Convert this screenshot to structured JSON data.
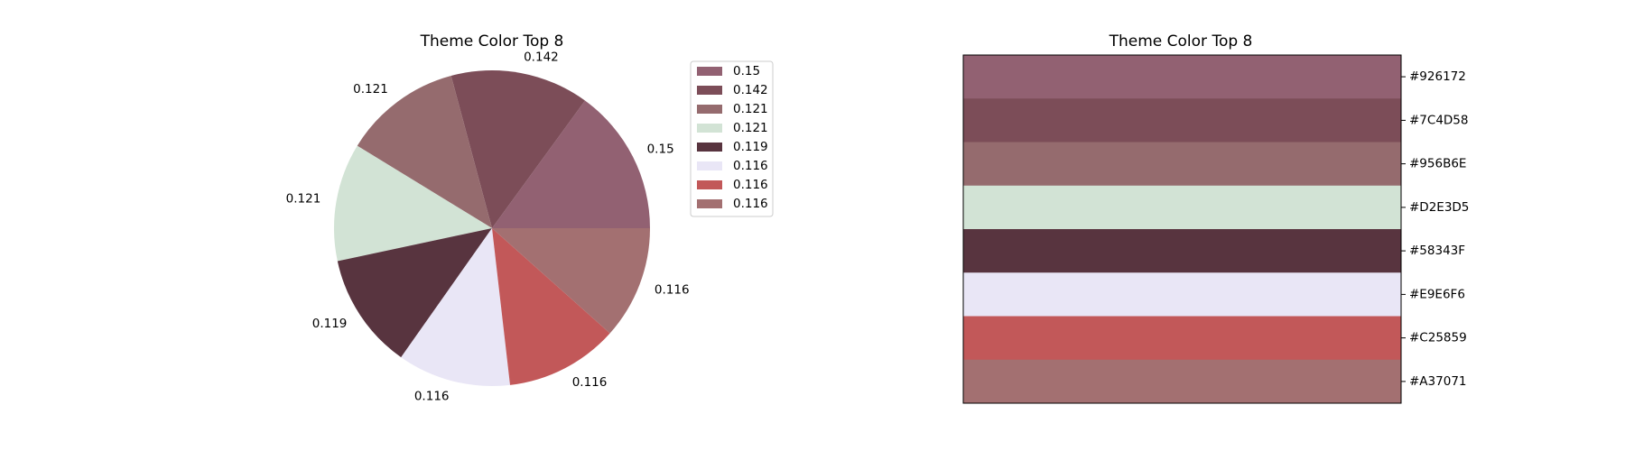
{
  "chart_data": [
    {
      "type": "pie",
      "title": "Theme Color Top 8",
      "values": [
        0.15,
        0.142,
        0.121,
        0.121,
        0.119,
        0.116,
        0.116,
        0.116
      ],
      "labels": [
        "0.15",
        "0.142",
        "0.121",
        "0.121",
        "0.119",
        "0.116",
        "0.116",
        "0.116"
      ],
      "colors": [
        "#926172",
        "#7C4D58",
        "#956B6E",
        "#D2E3D5",
        "#58343F",
        "#E9E6F6",
        "#C25859",
        "#A37071"
      ],
      "legend": {
        "position": "upper right outside",
        "entries": [
          "0.15",
          "0.142",
          "0.121",
          "0.121",
          "0.119",
          "0.116",
          "0.116",
          "0.116"
        ]
      },
      "start_angle": 0,
      "direction": "counterclockwise"
    },
    {
      "type": "bar",
      "title": "Theme Color Top 8",
      "orientation": "horizontal-stack",
      "categories": [
        "#926172",
        "#7C4D58",
        "#956B6E",
        "#D2E3D5",
        "#58343F",
        "#E9E6F6",
        "#C25859",
        "#A37071"
      ],
      "colors": [
        "#926172",
        "#7C4D58",
        "#956B6E",
        "#D2E3D5",
        "#58343F",
        "#E9E6F6",
        "#C25859",
        "#A37071"
      ],
      "values": [
        1,
        1,
        1,
        1,
        1,
        1,
        1,
        1
      ],
      "yaxis_side": "right",
      "xticks": false
    }
  ]
}
